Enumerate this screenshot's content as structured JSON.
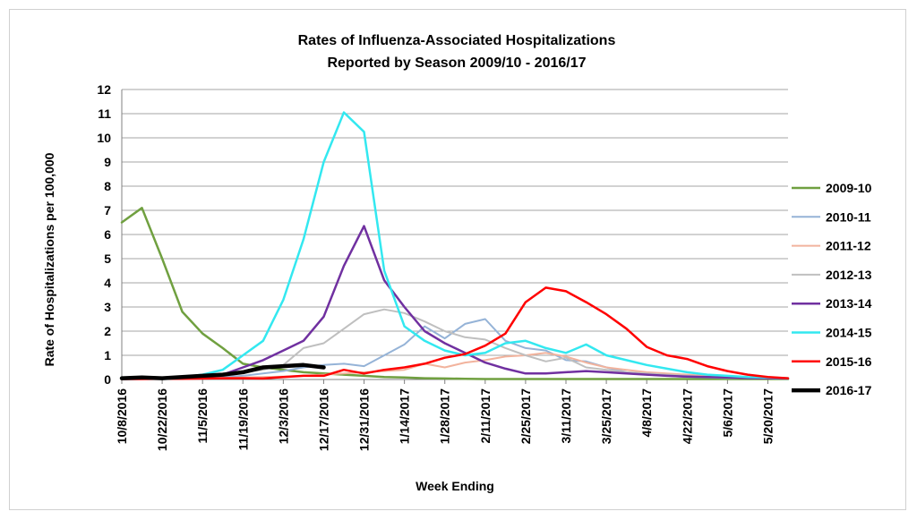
{
  "chart_data": {
    "type": "line",
    "title": "Rates of Influenza-Associated Hospitalizations",
    "subtitle": "Reported by Season 2009/10 - 2016/17",
    "xlabel": "Week Ending",
    "ylabel": "Rate of Hospitalizations per 100,000",
    "ylim": [
      0,
      12
    ],
    "yticks": [
      "0",
      "1",
      "2",
      "3",
      "4",
      "5",
      "6",
      "7",
      "8",
      "9",
      "10",
      "11",
      "12"
    ],
    "grid": true,
    "legend_position": "right",
    "x_tick_labels": [
      "10/8/2016",
      "10/22/2016",
      "11/5/2016",
      "11/19/2016",
      "12/3/2016",
      "12/17/2016",
      "12/31/2016",
      "1/14/2017",
      "1/28/2017",
      "2/11/2017",
      "2/25/2017",
      "3/11/2017",
      "3/25/2017",
      "4/8/2017",
      "4/22/2017",
      "5/6/2017",
      "5/20/2017"
    ],
    "week_count": 34,
    "series": [
      {
        "name": "2009-10",
        "color": "#70a040",
        "width": 2.5,
        "values": [
          6.5,
          7.1,
          5.0,
          2.8,
          1.9,
          1.3,
          0.65,
          0.5,
          0.4,
          0.3,
          0.25,
          0.2,
          0.15,
          0.1,
          0.08,
          0.05,
          0.04,
          0.03,
          0.02,
          0.02,
          0.02,
          0.02,
          0.02,
          0.02,
          0.02,
          0.02,
          0.02,
          0.02,
          0.02,
          0.02,
          0.02,
          0.02,
          0.02,
          0.02
        ]
      },
      {
        "name": "2010-11",
        "color": "#95b3d7",
        "width": 2,
        "values": [
          0.02,
          0.03,
          0.04,
          0.05,
          0.07,
          0.1,
          0.15,
          0.25,
          0.35,
          0.5,
          0.6,
          0.65,
          0.55,
          1.0,
          1.45,
          2.2,
          1.7,
          2.3,
          2.5,
          1.6,
          1.3,
          1.2,
          0.8,
          0.75,
          0.5,
          0.3,
          0.2,
          0.15,
          0.1,
          0.08,
          0.06,
          0.05,
          0.04,
          0.03
        ]
      },
      {
        "name": "2011-12",
        "color": "#f2b39d",
        "width": 2,
        "values": [
          0.02,
          0.02,
          0.03,
          0.04,
          0.05,
          0.06,
          0.08,
          0.1,
          0.12,
          0.15,
          0.2,
          0.25,
          0.3,
          0.35,
          0.4,
          0.65,
          0.5,
          0.7,
          0.8,
          0.95,
          1.0,
          1.1,
          0.95,
          0.7,
          0.5,
          0.4,
          0.3,
          0.25,
          0.2,
          0.15,
          0.1,
          0.08,
          0.06,
          0.05
        ]
      },
      {
        "name": "2012-13",
        "color": "#bfbfbf",
        "width": 2,
        "values": [
          0.03,
          0.04,
          0.05,
          0.1,
          0.15,
          0.2,
          0.3,
          0.4,
          0.6,
          1.3,
          1.5,
          2.1,
          2.7,
          2.9,
          2.75,
          2.4,
          2.0,
          1.75,
          1.65,
          1.3,
          1.0,
          0.75,
          0.9,
          0.5,
          0.4,
          0.3,
          0.25,
          0.2,
          0.15,
          0.1,
          0.08,
          0.06,
          0.05,
          0.04
        ]
      },
      {
        "name": "2013-14",
        "color": "#7030a0",
        "width": 2.5,
        "values": [
          0.02,
          0.03,
          0.04,
          0.05,
          0.1,
          0.2,
          0.5,
          0.8,
          1.2,
          1.6,
          2.6,
          4.7,
          6.35,
          4.1,
          3.0,
          2.0,
          1.5,
          1.1,
          0.7,
          0.45,
          0.25,
          0.25,
          0.3,
          0.35,
          0.3,
          0.25,
          0.2,
          0.15,
          0.12,
          0.1,
          0.08,
          0.06,
          0.05,
          0.04
        ]
      },
      {
        "name": "2014-15",
        "color": "#33e8f0",
        "width": 2.5,
        "values": [
          0.02,
          0.03,
          0.05,
          0.1,
          0.2,
          0.4,
          1.0,
          1.6,
          3.3,
          5.8,
          9.0,
          11.05,
          10.25,
          4.5,
          2.2,
          1.6,
          1.2,
          1.0,
          1.1,
          1.5,
          1.6,
          1.3,
          1.1,
          1.45,
          1.0,
          0.8,
          0.6,
          0.45,
          0.3,
          0.2,
          0.15,
          0.1,
          0.08,
          0.05
        ]
      },
      {
        "name": "2015-16",
        "color": "#ff0000",
        "width": 2.5,
        "values": [
          0.02,
          0.02,
          0.03,
          0.03,
          0.04,
          0.05,
          0.05,
          0.04,
          0.1,
          0.15,
          0.15,
          0.4,
          0.25,
          0.4,
          0.5,
          0.65,
          0.9,
          1.05,
          1.4,
          1.9,
          3.2,
          3.8,
          3.65,
          3.2,
          2.7,
          2.1,
          1.35,
          1.0,
          0.85,
          0.55,
          0.35,
          0.2,
          0.1,
          0.05
        ]
      },
      {
        "name": "2016-17",
        "color": "#000000",
        "width": 4.5,
        "values": [
          0.05,
          0.08,
          0.05,
          0.1,
          0.15,
          0.2,
          0.3,
          0.5,
          0.55,
          0.6,
          0.5
        ]
      }
    ]
  }
}
